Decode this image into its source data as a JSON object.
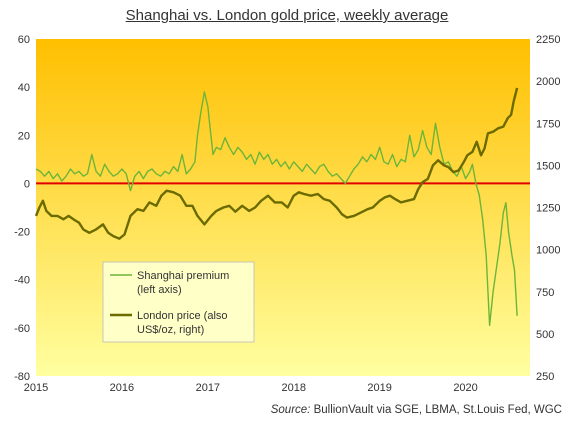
{
  "chart_data": {
    "type": "line",
    "title": "Shanghai vs. London gold price, weekly average",
    "source_label": "Source:",
    "source_text": "BullionVault via SGE, LBMA, St.Louis Fed, WGC",
    "x_ticks": [
      "2015",
      "2016",
      "2017",
      "2018",
      "2019",
      "2020"
    ],
    "left_axis": {
      "ticks": [
        60,
        40,
        20,
        0,
        -20,
        -40,
        -60,
        -80
      ],
      "ylim": [
        -80,
        60
      ]
    },
    "right_axis": {
      "ticks": [
        2250,
        2000,
        1750,
        1500,
        1250,
        1000,
        750,
        500,
        250
      ],
      "ylim": [
        250,
        2250
      ]
    },
    "xlim": [
      2015.0,
      2020.75
    ],
    "zero_line_color": "#e00000",
    "background_gradient": [
      "#ffbf00",
      "#ffffa0"
    ],
    "legend": {
      "placement": "center-left",
      "entries": [
        {
          "label_line1": "Shanghai premium",
          "label_line2": "(left axis)",
          "color": "#6cb53a"
        },
        {
          "label_line1": "London price (also",
          "label_line2": "US$/oz, right)",
          "color": "#6b6b00"
        }
      ]
    },
    "series": [
      {
        "name": "Shanghai premium",
        "axis": "left",
        "color": "#6cb53a",
        "points": [
          [
            2015.0,
            6
          ],
          [
            2015.05,
            5
          ],
          [
            2015.1,
            3
          ],
          [
            2015.15,
            5
          ],
          [
            2015.2,
            2
          ],
          [
            2015.25,
            4
          ],
          [
            2015.3,
            1
          ],
          [
            2015.35,
            3
          ],
          [
            2015.4,
            6
          ],
          [
            2015.45,
            4
          ],
          [
            2015.5,
            5
          ],
          [
            2015.55,
            3
          ],
          [
            2015.6,
            4
          ],
          [
            2015.65,
            12
          ],
          [
            2015.7,
            5
          ],
          [
            2015.75,
            3
          ],
          [
            2015.8,
            8
          ],
          [
            2015.85,
            5
          ],
          [
            2015.9,
            3
          ],
          [
            2015.95,
            4
          ],
          [
            2016.0,
            6
          ],
          [
            2016.05,
            4
          ],
          [
            2016.1,
            -3
          ],
          [
            2016.15,
            3
          ],
          [
            2016.2,
            5
          ],
          [
            2016.25,
            2
          ],
          [
            2016.3,
            5
          ],
          [
            2016.35,
            6
          ],
          [
            2016.4,
            4
          ],
          [
            2016.45,
            3
          ],
          [
            2016.5,
            5
          ],
          [
            2016.55,
            4
          ],
          [
            2016.6,
            7
          ],
          [
            2016.65,
            5
          ],
          [
            2016.7,
            12
          ],
          [
            2016.75,
            4
          ],
          [
            2016.8,
            6
          ],
          [
            2016.85,
            9
          ],
          [
            2016.88,
            20
          ],
          [
            2016.92,
            30
          ],
          [
            2016.96,
            38
          ],
          [
            2017.0,
            32
          ],
          [
            2017.03,
            22
          ],
          [
            2017.06,
            12
          ],
          [
            2017.1,
            15
          ],
          [
            2017.15,
            14
          ],
          [
            2017.2,
            19
          ],
          [
            2017.25,
            15
          ],
          [
            2017.3,
            12
          ],
          [
            2017.35,
            15
          ],
          [
            2017.4,
            13
          ],
          [
            2017.45,
            10
          ],
          [
            2017.5,
            12
          ],
          [
            2017.55,
            8
          ],
          [
            2017.6,
            13
          ],
          [
            2017.65,
            10
          ],
          [
            2017.7,
            12
          ],
          [
            2017.75,
            8
          ],
          [
            2017.8,
            10
          ],
          [
            2017.85,
            7
          ],
          [
            2017.9,
            9
          ],
          [
            2017.95,
            6
          ],
          [
            2018.0,
            9
          ],
          [
            2018.05,
            7
          ],
          [
            2018.1,
            5
          ],
          [
            2018.15,
            8
          ],
          [
            2018.2,
            6
          ],
          [
            2018.25,
            4
          ],
          [
            2018.3,
            7
          ],
          [
            2018.35,
            8
          ],
          [
            2018.4,
            5
          ],
          [
            2018.45,
            3
          ],
          [
            2018.5,
            4
          ],
          [
            2018.55,
            2
          ],
          [
            2018.6,
            0
          ],
          [
            2018.65,
            3
          ],
          [
            2018.7,
            6
          ],
          [
            2018.75,
            8
          ],
          [
            2018.8,
            11
          ],
          [
            2018.85,
            9
          ],
          [
            2018.9,
            12
          ],
          [
            2018.95,
            10
          ],
          [
            2019.0,
            15
          ],
          [
            2019.05,
            9
          ],
          [
            2019.1,
            8
          ],
          [
            2019.15,
            12
          ],
          [
            2019.2,
            7
          ],
          [
            2019.25,
            10
          ],
          [
            2019.3,
            9
          ],
          [
            2019.35,
            20
          ],
          [
            2019.4,
            11
          ],
          [
            2019.45,
            14
          ],
          [
            2019.5,
            22
          ],
          [
            2019.55,
            15
          ],
          [
            2019.6,
            12
          ],
          [
            2019.65,
            25
          ],
          [
            2019.7,
            15
          ],
          [
            2019.75,
            8
          ],
          [
            2019.8,
            9
          ],
          [
            2019.85,
            5
          ],
          [
            2019.9,
            3
          ],
          [
            2019.95,
            7
          ],
          [
            2020.0,
            2
          ],
          [
            2020.05,
            5
          ],
          [
            2020.08,
            8
          ],
          [
            2020.12,
            0
          ],
          [
            2020.16,
            -5
          ],
          [
            2020.2,
            -15
          ],
          [
            2020.24,
            -30
          ],
          [
            2020.28,
            -59
          ],
          [
            2020.32,
            -45
          ],
          [
            2020.36,
            -35
          ],
          [
            2020.4,
            -25
          ],
          [
            2020.44,
            -12
          ],
          [
            2020.47,
            -8
          ],
          [
            2020.5,
            -20
          ],
          [
            2020.54,
            -30
          ],
          [
            2020.57,
            -36
          ],
          [
            2020.6,
            -55
          ]
        ]
      },
      {
        "name": "London price (also US$/oz, right)",
        "axis": "right",
        "color": "#6b6b00",
        "points": [
          [
            2015.0,
            1200
          ],
          [
            2015.04,
            1250
          ],
          [
            2015.08,
            1290
          ],
          [
            2015.12,
            1230
          ],
          [
            2015.18,
            1200
          ],
          [
            2015.25,
            1200
          ],
          [
            2015.32,
            1180
          ],
          [
            2015.38,
            1200
          ],
          [
            2015.45,
            1175
          ],
          [
            2015.5,
            1160
          ],
          [
            2015.55,
            1120
          ],
          [
            2015.62,
            1100
          ],
          [
            2015.7,
            1120
          ],
          [
            2015.78,
            1150
          ],
          [
            2015.84,
            1100
          ],
          [
            2015.9,
            1080
          ],
          [
            2015.97,
            1065
          ],
          [
            2016.03,
            1090
          ],
          [
            2016.1,
            1200
          ],
          [
            2016.18,
            1240
          ],
          [
            2016.25,
            1230
          ],
          [
            2016.32,
            1280
          ],
          [
            2016.4,
            1260
          ],
          [
            2016.46,
            1320
          ],
          [
            2016.52,
            1350
          ],
          [
            2016.6,
            1340
          ],
          [
            2016.68,
            1320
          ],
          [
            2016.75,
            1260
          ],
          [
            2016.82,
            1260
          ],
          [
            2016.88,
            1200
          ],
          [
            2016.96,
            1150
          ],
          [
            2017.04,
            1200
          ],
          [
            2017.1,
            1230
          ],
          [
            2017.18,
            1250
          ],
          [
            2017.25,
            1260
          ],
          [
            2017.32,
            1225
          ],
          [
            2017.4,
            1260
          ],
          [
            2017.48,
            1230
          ],
          [
            2017.55,
            1250
          ],
          [
            2017.62,
            1290
          ],
          [
            2017.7,
            1320
          ],
          [
            2017.78,
            1280
          ],
          [
            2017.86,
            1280
          ],
          [
            2017.93,
            1250
          ],
          [
            2018.0,
            1320
          ],
          [
            2018.06,
            1340
          ],
          [
            2018.12,
            1330
          ],
          [
            2018.2,
            1320
          ],
          [
            2018.28,
            1330
          ],
          [
            2018.35,
            1300
          ],
          [
            2018.42,
            1290
          ],
          [
            2018.5,
            1250
          ],
          [
            2018.56,
            1210
          ],
          [
            2018.62,
            1190
          ],
          [
            2018.7,
            1200
          ],
          [
            2018.78,
            1220
          ],
          [
            2018.86,
            1240
          ],
          [
            2018.92,
            1250
          ],
          [
            2019.0,
            1290
          ],
          [
            2019.06,
            1310
          ],
          [
            2019.12,
            1320
          ],
          [
            2019.18,
            1300
          ],
          [
            2019.25,
            1280
          ],
          [
            2019.32,
            1290
          ],
          [
            2019.4,
            1300
          ],
          [
            2019.45,
            1360
          ],
          [
            2019.5,
            1400
          ],
          [
            2019.56,
            1420
          ],
          [
            2019.62,
            1500
          ],
          [
            2019.68,
            1530
          ],
          [
            2019.75,
            1500
          ],
          [
            2019.8,
            1490
          ],
          [
            2019.86,
            1460
          ],
          [
            2019.92,
            1470
          ],
          [
            2019.98,
            1520
          ],
          [
            2020.02,
            1560
          ],
          [
            2020.08,
            1580
          ],
          [
            2020.13,
            1640
          ],
          [
            2020.18,
            1560
          ],
          [
            2020.22,
            1600
          ],
          [
            2020.26,
            1690
          ],
          [
            2020.32,
            1700
          ],
          [
            2020.38,
            1720
          ],
          [
            2020.44,
            1730
          ],
          [
            2020.49,
            1780
          ],
          [
            2020.53,
            1800
          ],
          [
            2020.56,
            1880
          ],
          [
            2020.6,
            1960
          ]
        ]
      }
    ]
  }
}
